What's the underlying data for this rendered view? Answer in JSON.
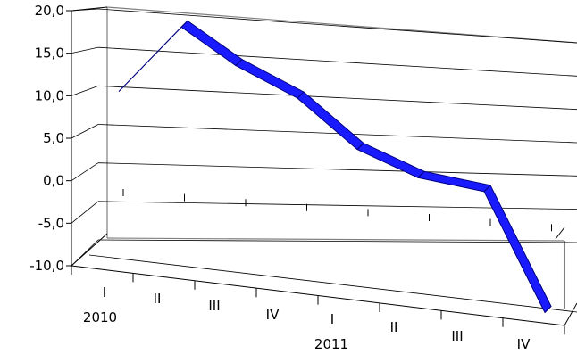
{
  "chart_data": {
    "type": "line",
    "categories": [
      {
        "quarter": "I",
        "year": "2010"
      },
      {
        "quarter": "II",
        "year": ""
      },
      {
        "quarter": "III",
        "year": ""
      },
      {
        "quarter": "IV",
        "year": ""
      },
      {
        "quarter": "I",
        "year": "2011"
      },
      {
        "quarter": "II",
        "year": ""
      },
      {
        "quarter": "III",
        "year": ""
      },
      {
        "quarter": "IV",
        "year": ""
      }
    ],
    "series": [
      {
        "values": [
          10.5,
          19.0,
          15.4,
          12.5,
          7.4,
          5.0,
          4.3,
          -9.0
        ],
        "color": "#1a1aff"
      }
    ],
    "ylim": [
      -10,
      20
    ],
    "yticks": [
      "20,0",
      "15,0",
      "10,0",
      "5,0",
      "0,0",
      "-5,0",
      "-10,0"
    ],
    "grid": true,
    "style": "3d-ribbon"
  }
}
